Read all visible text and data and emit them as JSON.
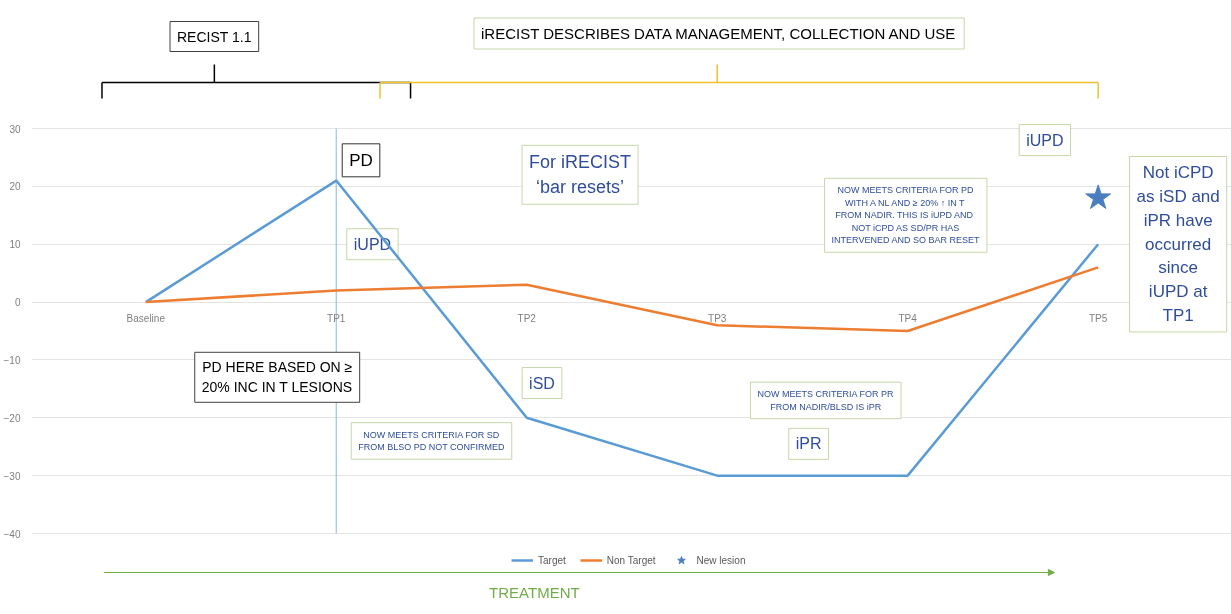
{
  "chart_data": {
    "type": "line",
    "categories": [
      "Baseline",
      "TP1",
      "TP2",
      "TP3",
      "TP4",
      "TP5"
    ],
    "series": [
      {
        "name": "Target",
        "color": "#5b9bd5",
        "values": [
          0,
          21,
          -20,
          -30,
          -30,
          10
        ]
      },
      {
        "name": "Non Target",
        "color": "#ed7d31",
        "values": [
          0,
          2,
          3,
          -4,
          -5,
          6
        ]
      },
      {
        "name": "New lesion",
        "type": "scatter",
        "marker": "star",
        "color": "#4a7ebf",
        "x": [
          "TP5"
        ],
        "values": [
          18
        ]
      }
    ],
    "ylim": [
      -40,
      30
    ],
    "yticks": [
      -40,
      -30,
      -20,
      -10,
      0,
      10,
      20,
      30
    ],
    "grid": "y",
    "legend": "bottom",
    "marker": "none",
    "line_style": "solid",
    "ref_lines": [
      {
        "axis": "x",
        "value": "TP1",
        "color": "#9dc3e6"
      }
    ],
    "annotations": [
      "RECIST 1.1",
      "iRECIST DESCRIBES DATA MANAGEMENT, COLLECTION AND USE",
      {
        "text": "PD",
        "x": "TP1",
        "y": 21
      },
      "iUPD",
      "For iRECIST\n‘bar resets’",
      "PD HERE BASED ON ≥\n20% INC IN T LESIONS",
      {
        "text": "iSD",
        "x": "TP2",
        "y": -20
      },
      "NOW MEETS CRITERIA FOR SD\nFROM BLSO PD NOT CONFIRMED",
      "NOW MEETS CRITERIA FOR PR\nFROM NADIR/BLSD IS iPR",
      "iPR",
      "NOW MEETS CRITERIA FOR PD\nWITH A NL AND ≥ 20% ↑ IN T\nFROM NADIR.  THIS IS iUPD AND\nNOT iCPD AS SD/PR HAS\nINTERVENED AND SO BAR RESET",
      "iUPD",
      "Not iCPD\nas iSD and\niPR have\noccurred\nsince\niUPD at\nTP1",
      "TREATMENT"
    ]
  }
}
